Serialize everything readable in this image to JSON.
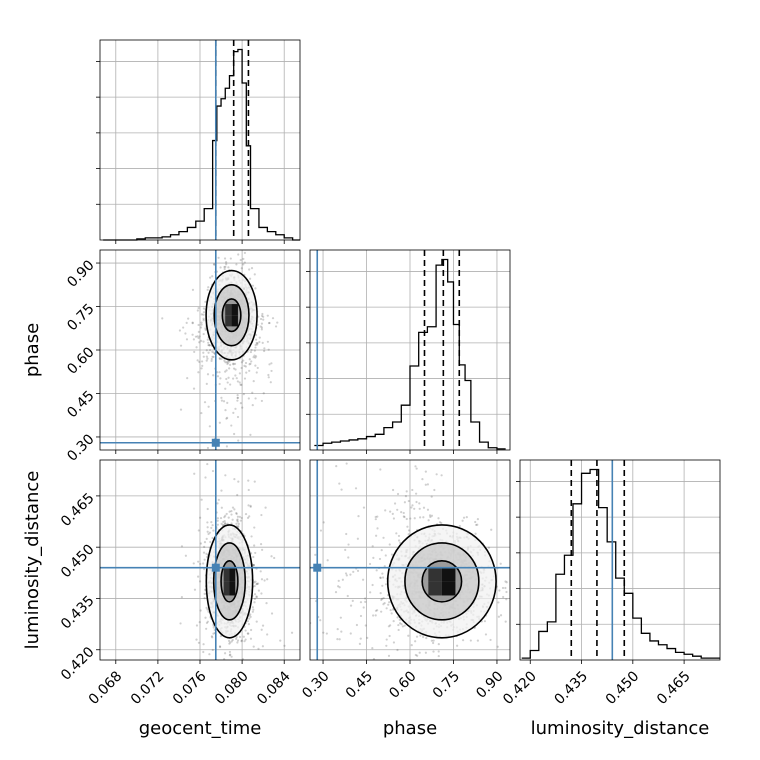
{
  "chart_data": {
    "type": "corner",
    "parameters": [
      {
        "name": "geocent_time",
        "label": "geocent_time",
        "range": [
          0.0665,
          0.0855
        ],
        "ticks": [
          "0.068",
          "0.072",
          "0.076",
          "0.080",
          "0.084"
        ],
        "tick_values": [
          0.068,
          0.072,
          0.076,
          0.08,
          0.084
        ],
        "truth": 0.0775,
        "quantiles": [
          0.0775,
          0.0792,
          0.0806
        ]
      },
      {
        "name": "phase",
        "label": "phase",
        "range": [
          0.255,
          0.945
        ],
        "ticks": [
          "0.30",
          "0.45",
          "0.60",
          "0.75",
          "0.90"
        ],
        "tick_values": [
          0.3,
          0.45,
          0.6,
          0.75,
          0.9
        ],
        "truth": 0.28,
        "quantiles": [
          0.65,
          0.715,
          0.77
        ]
      },
      {
        "name": "luminosity_distance",
        "label": "luminosity_distance",
        "range": [
          0.417,
          0.4755
        ],
        "ticks": [
          "0.420",
          "0.435",
          "0.450",
          "0.465"
        ],
        "tick_values": [
          0.42,
          0.435,
          0.45,
          0.465
        ],
        "truth": 0.444,
        "quantiles": [
          0.432,
          0.4395,
          0.4475
        ]
      }
    ],
    "histograms": [
      {
        "param": "geocent_time",
        "bin_edges": [
          0.0668,
          0.0676,
          0.0684,
          0.0692,
          0.07,
          0.0708,
          0.0716,
          0.0724,
          0.0732,
          0.074,
          0.0748,
          0.0756,
          0.0764,
          0.0772,
          0.0776,
          0.078,
          0.0784,
          0.0788,
          0.0792,
          0.0796,
          0.08,
          0.0804,
          0.0808,
          0.0816,
          0.0824,
          0.0832,
          0.084,
          0.0848,
          0.0856
        ],
        "counts": [
          0,
          0,
          0,
          0,
          1,
          2,
          2,
          3,
          5,
          8,
          12,
          18,
          30,
          95,
          128,
          135,
          145,
          157,
          180,
          182,
          150,
          90,
          30,
          12,
          8,
          5,
          2,
          0
        ],
        "ymax": 182
      },
      {
        "param": "phase",
        "bin_edges": [
          0.27,
          0.3,
          0.33,
          0.36,
          0.39,
          0.42,
          0.45,
          0.48,
          0.51,
          0.54,
          0.57,
          0.6,
          0.63,
          0.66,
          0.69,
          0.71,
          0.73,
          0.75,
          0.77,
          0.79,
          0.81,
          0.84,
          0.87,
          0.9,
          0.93
        ],
        "counts": [
          4,
          6,
          7,
          8,
          9,
          10,
          12,
          14,
          20,
          25,
          40,
          75,
          105,
          110,
          165,
          170,
          150,
          112,
          76,
          62,
          25,
          7,
          2,
          1
        ],
        "ymax": 170
      },
      {
        "param": "luminosity_distance",
        "bin_edges": [
          0.4175,
          0.42,
          0.4225,
          0.425,
          0.4275,
          0.43,
          0.4325,
          0.435,
          0.4375,
          0.44,
          0.4425,
          0.445,
          0.4475,
          0.45,
          0.4525,
          0.455,
          0.4575,
          0.46,
          0.4625,
          0.465,
          0.4675,
          0.47,
          0.4725,
          0.4755
        ],
        "counts": [
          1,
          5,
          15,
          20,
          45,
          55,
          82,
          98,
          100,
          80,
          62,
          43,
          35,
          22,
          14,
          10,
          8,
          6,
          4,
          3,
          2,
          1,
          1
        ],
        "ymax": 100
      }
    ],
    "scatter_2d": [
      {
        "x": "geocent_time",
        "y": "phase",
        "peak": [
          0.079,
          0.72
        ],
        "sigma": [
          0.0011,
          0.07
        ],
        "contour_levels": 3
      },
      {
        "x": "geocent_time",
        "y": "luminosity_distance",
        "peak": [
          0.0788,
          0.44
        ],
        "sigma": [
          0.001,
          0.0075
        ],
        "contour_levels": 3
      },
      {
        "x": "phase",
        "y": "luminosity_distance",
        "peak": [
          0.71,
          0.44
        ],
        "sigma": [
          0.085,
          0.0075
        ],
        "contour_levels": 3
      }
    ],
    "colors": {
      "truth": "#4682b4",
      "data": "#000000",
      "grid": "#b0b0b0"
    },
    "grid": true,
    "title": ""
  }
}
